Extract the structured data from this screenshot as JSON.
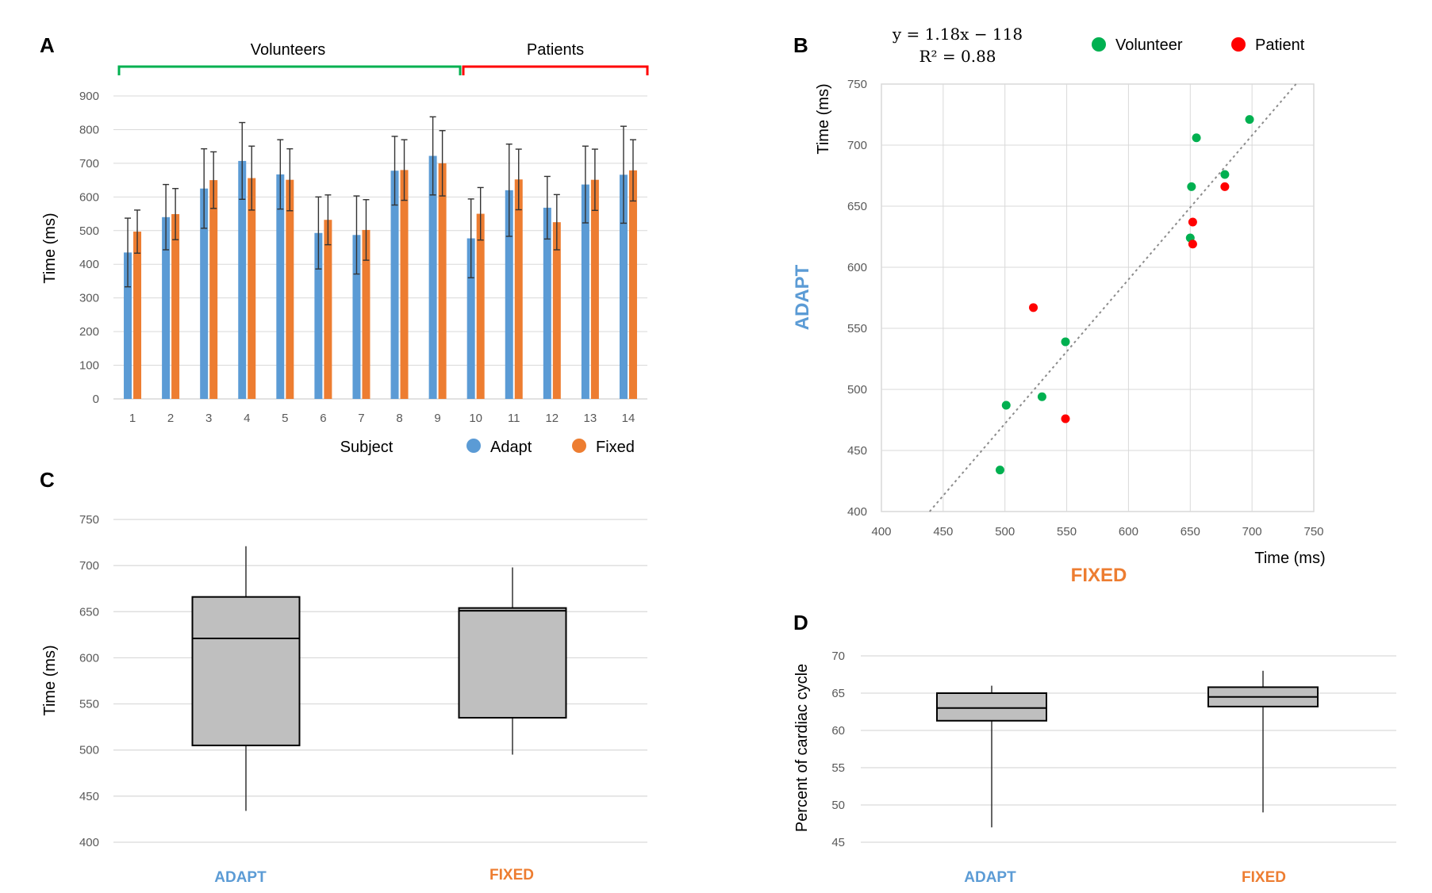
{
  "colors": {
    "adapt": "#5b9bd5",
    "fixed": "#ed7d31",
    "volunteer": "#00b050",
    "patient": "#ff0000",
    "grid": "#d9d9d9",
    "box": "#bfbfbf",
    "adapt_label": "#5b9bd5",
    "fixed_label": "#ed7d31",
    "volunteers_bracket": "#00b050",
    "patients_bracket": "#ff0000"
  },
  "chart_data": [
    {
      "panel": "A",
      "type": "bar",
      "groups": [
        {
          "label": "Volunteers",
          "subjects": [
            1,
            9
          ]
        },
        {
          "label": "Patients",
          "subjects": [
            10,
            14
          ]
        }
      ],
      "categories": [
        "1",
        "2",
        "3",
        "4",
        "5",
        "6",
        "7",
        "8",
        "9",
        "10",
        "11",
        "12",
        "13",
        "14"
      ],
      "series": [
        {
          "name": "Adapt",
          "values": [
            435,
            540,
            625,
            707,
            667,
            493,
            487,
            678,
            722,
            477,
            620,
            568,
            637,
            666
          ],
          "errors": [
            102,
            97,
            118,
            114,
            103,
            107,
            116,
            102,
            116,
            117,
            137,
            93,
            114,
            144
          ]
        },
        {
          "name": "Fixed",
          "values": [
            497,
            549,
            650,
            656,
            651,
            532,
            502,
            680,
            700,
            550,
            652,
            525,
            651,
            679
          ],
          "errors": [
            64,
            76,
            84,
            95,
            92,
            74,
            90,
            90,
            97,
            78,
            90,
            82,
            91,
            91
          ]
        }
      ],
      "xlabel": "Subject",
      "ylabel": "Time (ms)",
      "ylim": [
        0,
        900
      ],
      "yticks": [
        0,
        100,
        200,
        300,
        400,
        500,
        600,
        700,
        800,
        900
      ],
      "grid": true,
      "legend": "bottom-right"
    },
    {
      "panel": "B",
      "type": "scatter",
      "equation_line1": "y = 1.18x − 118",
      "equation_line2": "R² = 0.88",
      "fit": {
        "slope": 1.18,
        "intercept": -118
      },
      "series": [
        {
          "name": "Volunteer",
          "points": [
            [
              496,
              434
            ],
            [
              501,
              487
            ],
            [
              530,
              494
            ],
            [
              549,
              539
            ],
            [
              651,
              666
            ],
            [
              655,
              706
            ],
            [
              650,
              624
            ],
            [
              678,
              676
            ],
            [
              698,
              721
            ]
          ]
        },
        {
          "name": "Patient",
          "points": [
            [
              523,
              567
            ],
            [
              549,
              476
            ],
            [
              652,
              637
            ],
            [
              652,
              619
            ],
            [
              678,
              666
            ]
          ]
        }
      ],
      "xlabel": "Time (ms)",
      "ylabel": "Time (ms)",
      "x_name": "FIXED",
      "y_name": "ADAPT",
      "xlim": [
        400,
        750
      ],
      "ylim": [
        400,
        750
      ],
      "xticks": [
        400,
        450,
        500,
        550,
        600,
        650,
        700,
        750
      ],
      "yticks": [
        400,
        450,
        500,
        550,
        600,
        650,
        700,
        750
      ],
      "grid": true,
      "legend": "top-right"
    },
    {
      "panel": "C",
      "type": "box",
      "categories": [
        "ADAPT",
        "FIXED"
      ],
      "boxes": [
        {
          "min": 434,
          "q1": 505,
          "median": 621,
          "q3": 666,
          "max": 721
        },
        {
          "min": 495,
          "q1": 535,
          "median": 651,
          "q3": 654,
          "max": 698
        }
      ],
      "ylabel": "Time (ms)",
      "ylim": [
        400,
        750
      ],
      "yticks": [
        400,
        450,
        500,
        550,
        600,
        650,
        700,
        750
      ],
      "grid": true
    },
    {
      "panel": "D",
      "type": "box",
      "categories": [
        "ADAPT",
        "FIXED"
      ],
      "boxes": [
        {
          "min": 47,
          "q1": 61.3,
          "median": 63,
          "q3": 65,
          "max": 66
        },
        {
          "min": 49,
          "q1": 63.2,
          "median": 64.5,
          "q3": 65.8,
          "max": 68
        }
      ],
      "ylabel": "Percent of cardiac cycle",
      "ylim": [
        45,
        70
      ],
      "yticks": [
        45,
        50,
        55,
        60,
        65,
        70
      ],
      "grid": true
    }
  ]
}
